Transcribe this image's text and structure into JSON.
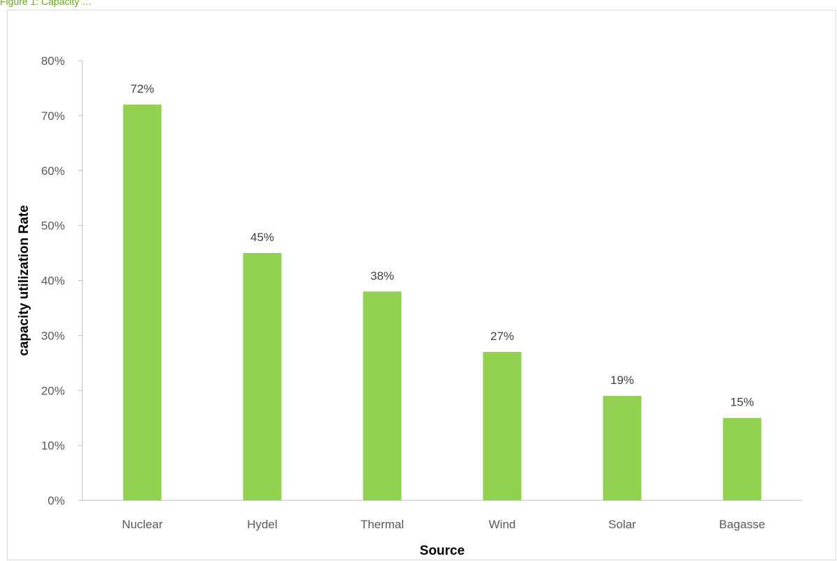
{
  "caption": "Figure 1: Capacity …",
  "chart_data": {
    "type": "bar",
    "title": "",
    "xlabel": "Source",
    "ylabel": "capacity utilization Rate",
    "categories": [
      "Nuclear",
      "Hydel",
      "Thermal",
      "Wind",
      "Solar",
      "Bagasse"
    ],
    "values": [
      72,
      45,
      38,
      27,
      19,
      15
    ],
    "value_labels": [
      "72%",
      "45%",
      "38%",
      "27%",
      "19%",
      "15%"
    ],
    "ylim": [
      0,
      80
    ],
    "yticks": [
      "0%",
      "10%",
      "20%",
      "30%",
      "40%",
      "50%",
      "60%",
      "70%",
      "80%"
    ],
    "grid": false,
    "legend": "none",
    "bar_color": "#92d050"
  }
}
